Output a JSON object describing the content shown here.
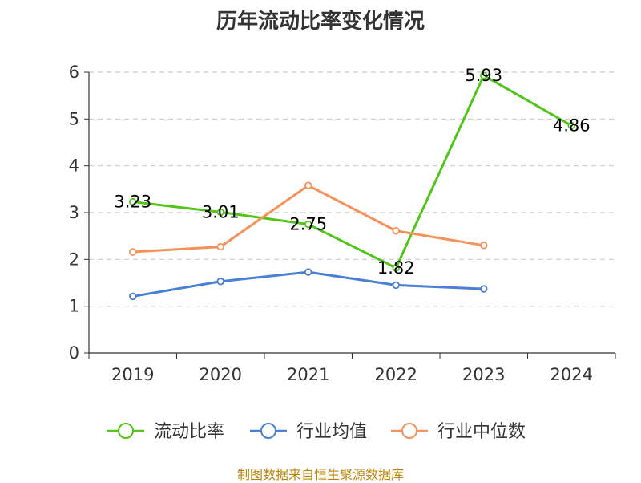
{
  "chart_data": {
    "type": "line",
    "title": "历年流动比率变化情况",
    "categories": [
      "2019",
      "2020",
      "2021",
      "2022",
      "2023",
      "2024"
    ],
    "ylim": [
      0,
      6
    ],
    "yticks": [
      "0",
      "1",
      "2",
      "3",
      "4",
      "5",
      "6"
    ],
    "grid": true,
    "legend_position": "bottom",
    "series": [
      {
        "name": "流动比率",
        "color": "#52c41a",
        "values": [
          3.23,
          3.01,
          2.75,
          1.82,
          5.93,
          4.86
        ],
        "labels": [
          "3.23",
          "3.01",
          "2.75",
          "1.82",
          "5.93",
          "4.86"
        ]
      },
      {
        "name": "行业均值",
        "color": "#4a7fd6",
        "values": [
          1.21,
          1.53,
          1.73,
          1.45,
          1.37,
          null
        ]
      },
      {
        "name": "行业中位数",
        "color": "#f5915a",
        "values": [
          2.16,
          2.27,
          3.58,
          2.61,
          2.3,
          null
        ]
      }
    ]
  },
  "source": "制图数据来自恒生聚源数据库"
}
